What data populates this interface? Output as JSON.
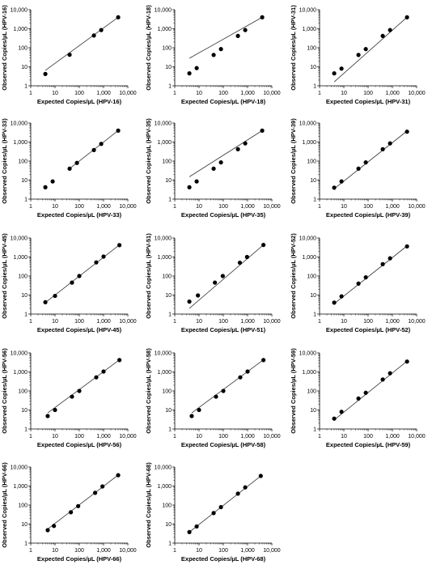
{
  "chart_data": [
    {
      "type": "scatter",
      "panel": "HPV-16",
      "xlabel": "Expected Copies/µL (HPV-16)",
      "ylabel": "Observed Copies/µL (HPV-16)",
      "xscale": "log",
      "yscale": "log",
      "xlim": [
        1,
        10000
      ],
      "ylim": [
        1,
        10000
      ],
      "xticks": [
        "1",
        "10",
        "100",
        "1,000",
        "10,000"
      ],
      "yticks": [
        "1",
        "10",
        "100",
        "1,000",
        "10,000"
      ],
      "points": [
        [
          4,
          4.2
        ],
        [
          40,
          43
        ],
        [
          400,
          440
        ],
        [
          800,
          850
        ],
        [
          4000,
          4000
        ]
      ],
      "fit": [
        [
          4,
          6.5
        ],
        [
          4000,
          4000
        ]
      ]
    },
    {
      "type": "scatter",
      "panel": "HPV-18",
      "xlabel": "Expected Copies/µL (HPV-18)",
      "ylabel": "Observed Copies/µL (HPV-18)",
      "xscale": "log",
      "yscale": "log",
      "xlim": [
        1,
        10000
      ],
      "ylim": [
        1,
        10000
      ],
      "xticks": [
        "1",
        "10",
        "100",
        "1,000",
        "10,000"
      ],
      "yticks": [
        "1",
        "10",
        "100",
        "1,000",
        "10,000"
      ],
      "points": [
        [
          4,
          4.5
        ],
        [
          8,
          8.5
        ],
        [
          40,
          42
        ],
        [
          80,
          85
        ],
        [
          400,
          420
        ],
        [
          800,
          850
        ],
        [
          4000,
          4000
        ]
      ],
      "fit": [
        [
          4,
          28
        ],
        [
          4000,
          4000
        ]
      ]
    },
    {
      "type": "scatter",
      "panel": "HPV-31",
      "xlabel": "Expected Copies/µL (HPV-31)",
      "ylabel": "Observed Copies/µL (HPV-31)",
      "xscale": "log",
      "yscale": "log",
      "xlim": [
        1,
        10000
      ],
      "ylim": [
        1,
        10000
      ],
      "xticks": [
        "1",
        "10",
        "100",
        "1,000",
        "10,000"
      ],
      "yticks": [
        "1",
        "10",
        "100",
        "1,000",
        "10,000"
      ],
      "points": [
        [
          4,
          4.5
        ],
        [
          8,
          8
        ],
        [
          40,
          42
        ],
        [
          80,
          85
        ],
        [
          400,
          420
        ],
        [
          800,
          850
        ],
        [
          4000,
          4000
        ]
      ],
      "fit": [
        [
          4,
          1.6
        ],
        [
          4000,
          4000
        ]
      ]
    },
    {
      "type": "scatter",
      "panel": "HPV-33",
      "xlabel": "Expected Copies/µL (HPV-33)",
      "ylabel": "Observed Copies/µL (HPV-33)",
      "xscale": "log",
      "yscale": "log",
      "xlim": [
        1,
        10000
      ],
      "ylim": [
        1,
        10000
      ],
      "xticks": [
        "1",
        "10",
        "100",
        "1,000",
        "10,000"
      ],
      "yticks": [
        "1",
        "10",
        "100",
        "1,000",
        "10,000"
      ],
      "points": [
        [
          4,
          4.2
        ],
        [
          8,
          8.5
        ],
        [
          40,
          40
        ],
        [
          80,
          80
        ],
        [
          400,
          380
        ],
        [
          800,
          800
        ],
        [
          4000,
          4000
        ]
      ],
      "fit": [
        [
          40,
          40
        ],
        [
          4000,
          4000
        ]
      ]
    },
    {
      "type": "scatter",
      "panel": "HPV-35",
      "xlabel": "Expected Copies/µL (HPV-35)",
      "ylabel": "Observed Copies/µL (HPV-35)",
      "xscale": "log",
      "yscale": "log",
      "xlim": [
        1,
        10000
      ],
      "ylim": [
        1,
        10000
      ],
      "xticks": [
        "1",
        "10",
        "100",
        "1,000",
        "10,000"
      ],
      "yticks": [
        "1",
        "10",
        "100",
        "1,000",
        "10,000"
      ],
      "points": [
        [
          4,
          4.2
        ],
        [
          8,
          8.5
        ],
        [
          40,
          40
        ],
        [
          80,
          85
        ],
        [
          400,
          420
        ],
        [
          800,
          850
        ],
        [
          4000,
          4000
        ]
      ],
      "fit": [
        [
          4,
          15
        ],
        [
          4000,
          4000
        ]
      ]
    },
    {
      "type": "scatter",
      "panel": "HPV-39",
      "xlabel": "Expected Copies/µL (HPV-39)",
      "ylabel": "Observed Copies/µL (HPV-39)",
      "xscale": "log",
      "yscale": "log",
      "xlim": [
        1,
        10000
      ],
      "ylim": [
        1,
        10000
      ],
      "xticks": [
        "1",
        "10",
        "100",
        "1,000",
        "10,000"
      ],
      "yticks": [
        "1",
        "10",
        "100",
        "1,000",
        "10,000"
      ],
      "points": [
        [
          4,
          4
        ],
        [
          8,
          8.5
        ],
        [
          40,
          40
        ],
        [
          80,
          85
        ],
        [
          400,
          420
        ],
        [
          800,
          850
        ],
        [
          4000,
          3500
        ]
      ],
      "fit": [
        [
          4,
          3.5
        ],
        [
          4000,
          3800
        ]
      ]
    },
    {
      "type": "scatter",
      "panel": "HPV-45",
      "xlabel": "Expected Copies/µL (HPV-45)",
      "ylabel": "Observed Copies/µL (HPV-45)",
      "xscale": "log",
      "yscale": "log",
      "xlim": [
        1,
        10000
      ],
      "ylim": [
        1,
        10000
      ],
      "xticks": [
        "1",
        "10",
        "100",
        "1,000",
        "10,000"
      ],
      "yticks": [
        "1",
        "10",
        "100",
        "1,000",
        "10,000"
      ],
      "points": [
        [
          4,
          4.2
        ],
        [
          10,
          9
        ],
        [
          50,
          45
        ],
        [
          100,
          100
        ],
        [
          500,
          520
        ],
        [
          1000,
          1050
        ],
        [
          4500,
          4200
        ]
      ],
      "fit": [
        [
          4,
          4
        ],
        [
          4500,
          4300
        ]
      ]
    },
    {
      "type": "scatter",
      "panel": "HPV-51",
      "xlabel": "Expected Copies/µL (HPV-51)",
      "ylabel": "Observed Copies/µL (HPV-51)",
      "xscale": "log",
      "yscale": "log",
      "xlim": [
        1,
        10000
      ],
      "ylim": [
        1,
        10000
      ],
      "xticks": [
        "1",
        "10",
        "100",
        "1,000",
        "10,000"
      ],
      "yticks": [
        "1",
        "10",
        "100",
        "1,000",
        "10,000"
      ],
      "points": [
        [
          4,
          4.5
        ],
        [
          9,
          9.5
        ],
        [
          45,
          45
        ],
        [
          95,
          100
        ],
        [
          480,
          500
        ],
        [
          950,
          1000
        ],
        [
          4500,
          4300
        ]
      ],
      "fit": [
        [
          4,
          2
        ],
        [
          4500,
          4300
        ]
      ]
    },
    {
      "type": "scatter",
      "panel": "HPV-52",
      "xlabel": "Expected Copies/µL (HPV-52)",
      "ylabel": "Observed Copies/µL (HPV-52)",
      "xscale": "log",
      "yscale": "log",
      "xlim": [
        1,
        10000
      ],
      "ylim": [
        1,
        10000
      ],
      "xticks": [
        "1",
        "10",
        "100",
        "1,000",
        "10,000"
      ],
      "yticks": [
        "1",
        "10",
        "100",
        "1,000",
        "10,000"
      ],
      "points": [
        [
          4,
          4
        ],
        [
          8,
          8.5
        ],
        [
          40,
          40
        ],
        [
          80,
          85
        ],
        [
          400,
          420
        ],
        [
          800,
          850
        ],
        [
          4000,
          3600
        ]
      ],
      "fit": [
        [
          4,
          3.5
        ],
        [
          4000,
          3800
        ]
      ]
    },
    {
      "type": "scatter",
      "panel": "HPV-56",
      "xlabel": "Expected Copies/µL (HPV-56)",
      "ylabel": "Observed Copies/µL (HPV-56)",
      "xscale": "log",
      "yscale": "log",
      "xlim": [
        1,
        10000
      ],
      "ylim": [
        1,
        10000
      ],
      "xticks": [
        "1",
        "10",
        "100",
        "1,000",
        "10,000"
      ],
      "yticks": [
        "1",
        "10",
        "100",
        "1,000",
        "10,000"
      ],
      "points": [
        [
          5,
          4.8
        ],
        [
          10,
          10
        ],
        [
          50,
          50
        ],
        [
          100,
          100
        ],
        [
          500,
          520
        ],
        [
          1000,
          1050
        ],
        [
          4500,
          4200
        ]
      ],
      "fit": [
        [
          5,
          7
        ],
        [
          4500,
          4300
        ]
      ]
    },
    {
      "type": "scatter",
      "panel": "HPV-58",
      "xlabel": "Expected Copies/µL (HPV-58)",
      "ylabel": "Observed Copies/µL (HPV-58)",
      "xscale": "log",
      "yscale": "log",
      "xlim": [
        1,
        10000
      ],
      "ylim": [
        1,
        10000
      ],
      "xticks": [
        "1",
        "10",
        "100",
        "1,000",
        "10,000"
      ],
      "yticks": [
        "1",
        "10",
        "100",
        "1,000",
        "10,000"
      ],
      "points": [
        [
          5,
          4.8
        ],
        [
          10,
          10
        ],
        [
          50,
          50
        ],
        [
          100,
          100
        ],
        [
          500,
          520
        ],
        [
          1000,
          1050
        ],
        [
          4500,
          4200
        ]
      ],
      "fit": [
        [
          5,
          7
        ],
        [
          4500,
          4300
        ]
      ]
    },
    {
      "type": "scatter",
      "panel": "HPV-59",
      "xlabel": "Expected Copies/µL (HPV-59)",
      "ylabel": "Observed Copies/µL (HPV-59)",
      "xscale": "log",
      "yscale": "log",
      "xlim": [
        1,
        10000
      ],
      "ylim": [
        1,
        10000
      ],
      "xticks": [
        "1",
        "10",
        "100",
        "1,000",
        "10,000"
      ],
      "yticks": [
        "1",
        "10",
        "100",
        "1,000",
        "10,000"
      ],
      "points": [
        [
          4,
          3.5
        ],
        [
          8,
          8
        ],
        [
          40,
          40
        ],
        [
          80,
          80
        ],
        [
          400,
          400
        ],
        [
          800,
          850
        ],
        [
          4000,
          3500
        ]
      ],
      "fit": [
        [
          4,
          3
        ],
        [
          4000,
          3700
        ]
      ]
    },
    {
      "type": "scatter",
      "panel": "HPV-66",
      "xlabel": "Expected Copies/µL (HPV-66)",
      "ylabel": "Observed Copies/µL (HPV-66)",
      "xscale": "log",
      "yscale": "log",
      "xlim": [
        1,
        10000
      ],
      "ylim": [
        1,
        10000
      ],
      "xticks": [
        "1",
        "10",
        "100",
        "1,000",
        "10,000"
      ],
      "yticks": [
        "1",
        "10",
        "100",
        "1,000",
        "10,000"
      ],
      "points": [
        [
          5,
          4.8
        ],
        [
          9,
          8
        ],
        [
          45,
          42
        ],
        [
          90,
          88
        ],
        [
          450,
          440
        ],
        [
          900,
          950
        ],
        [
          4000,
          3700
        ]
      ],
      "fit": [
        [
          5,
          5.5
        ],
        [
          4000,
          3800
        ]
      ]
    },
    {
      "type": "scatter",
      "panel": "HPV-68",
      "xlabel": "Expected Copies/µL (HPV-68)",
      "ylabel": "Observed Copies/µL (HPV-68)",
      "xscale": "log",
      "yscale": "log",
      "xlim": [
        1,
        10000
      ],
      "ylim": [
        1,
        10000
      ],
      "xticks": [
        "1",
        "10",
        "100",
        "1,000",
        "10,000"
      ],
      "yticks": [
        "1",
        "10",
        "100",
        "1,000",
        "10,000"
      ],
      "points": [
        [
          4,
          3.8
        ],
        [
          8,
          7.5
        ],
        [
          40,
          38
        ],
        [
          80,
          78
        ],
        [
          400,
          400
        ],
        [
          800,
          850
        ],
        [
          3500,
          3400
        ]
      ],
      "fit": [
        [
          4,
          3.8
        ],
        [
          3500,
          3400
        ]
      ]
    }
  ]
}
